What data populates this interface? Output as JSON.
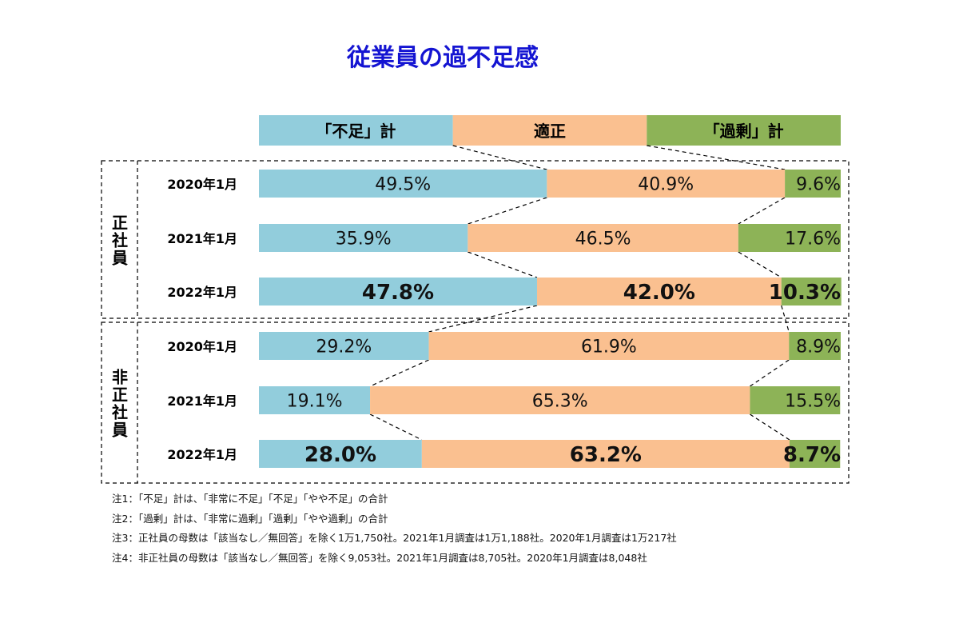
{
  "colors": {
    "shortage": "#92CDDC",
    "appropriate": "#FAC090",
    "surplus": "#8DB357",
    "title": "#1414D2"
  },
  "chart_data": {
    "type": "bar",
    "stacked": true,
    "orientation": "horizontal",
    "title": "従業員の過不足感",
    "legend": [
      "「不足」計",
      "適正",
      "「過剰」計"
    ],
    "legend_position": "top",
    "groups": [
      {
        "label_chars": [
          "正",
          "社",
          "員"
        ],
        "rows": [
          {
            "label": "2020年1月",
            "values": [
              49.5,
              40.9,
              9.6
            ],
            "labels": [
              "49.5%",
              "40.9%",
              "9.6%"
            ],
            "bold": false
          },
          {
            "label": "2021年1月",
            "values": [
              35.9,
              46.5,
              17.6
            ],
            "labels": [
              "35.9%",
              "46.5%",
              "17.6%"
            ],
            "bold": false
          },
          {
            "label": "2022年1月",
            "values": [
              47.8,
              42.0,
              10.3
            ],
            "labels": [
              "47.8%",
              "42.0%",
              "10.3%"
            ],
            "bold": true
          }
        ]
      },
      {
        "label_chars": [
          "非",
          "正",
          "社",
          "員"
        ],
        "rows": [
          {
            "label": "2020年1月",
            "values": [
              29.2,
              61.9,
              8.9
            ],
            "labels": [
              "29.2%",
              "61.9%",
              "8.9%"
            ],
            "bold": false
          },
          {
            "label": "2021年1月",
            "values": [
              19.1,
              65.3,
              15.5
            ],
            "labels": [
              "19.1%",
              "65.3%",
              "15.5%"
            ],
            "bold": false
          },
          {
            "label": "2022年1月",
            "values": [
              28.0,
              63.2,
              8.7
            ],
            "labels": [
              "28.0%",
              "63.2%",
              "8.7%"
            ],
            "bold": true
          }
        ]
      }
    ]
  },
  "notes": [
    "注1：「不足」計は、「非常に不足」「不足」「やや不足」の合計",
    "注2：「過剰」計は、「非常に過剰」「過剰」「やや過剰」の合計",
    "注3：正社員の母数は「該当なし／無回答」を除く1万1,750社。2021年1月調査は1万1,188社。2020年1月調査は1万217社",
    "注4：非正社員の母数は「該当なし／無回答」を除く9,053社。2021年1月調査は8,705社。2020年1月調査は8,048社"
  ]
}
